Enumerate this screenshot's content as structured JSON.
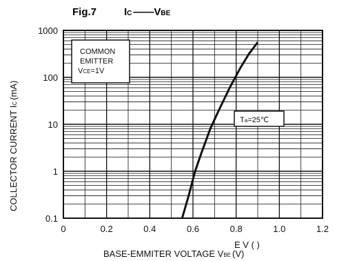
{
  "figure": {
    "label": "Fig.7",
    "title_left_main": "I",
    "title_left_sub": "C",
    "title_dash": "——",
    "title_right_main": "V",
    "title_right_sub": "BE"
  },
  "chart_data": {
    "type": "line",
    "xlabel_main": "BASE-EMMITER VOLTAGE V",
    "xlabel_sub": "BE",
    "xlabel_unit": "(V)",
    "xlabel_overlay": "E V (  )",
    "ylabel_main": "COLLECTOR CURRENT I",
    "ylabel_sub": "C",
    "ylabel_unit": "(mA)",
    "xlim": [
      0,
      1.2
    ],
    "ylim": [
      0.1,
      1000
    ],
    "yscale": "log",
    "grid": true,
    "x_ticks": [
      "0",
      "0.2",
      "0.4",
      "0.6",
      "0.8",
      "1.0",
      "1.2"
    ],
    "y_ticks": [
      "0.1",
      "1",
      "10",
      "100",
      "1000"
    ],
    "series": [
      {
        "x": [
          0.55,
          0.58,
          0.61,
          0.64,
          0.68,
          0.72,
          0.77,
          0.82,
          0.86,
          0.9
        ],
        "y": [
          0.1,
          0.3,
          1,
          2.5,
          8,
          20,
          60,
          160,
          320,
          560
        ]
      }
    ],
    "annotations": {
      "box1_line1": "COMMON",
      "box1_line2": "EMITTER",
      "box1_line3_main": "V",
      "box1_line3_sub": "CE",
      "box1_line3_rest": "=1V",
      "box2_main": "T",
      "box2_sub": "a",
      "box2_rest": "=25℃"
    }
  }
}
